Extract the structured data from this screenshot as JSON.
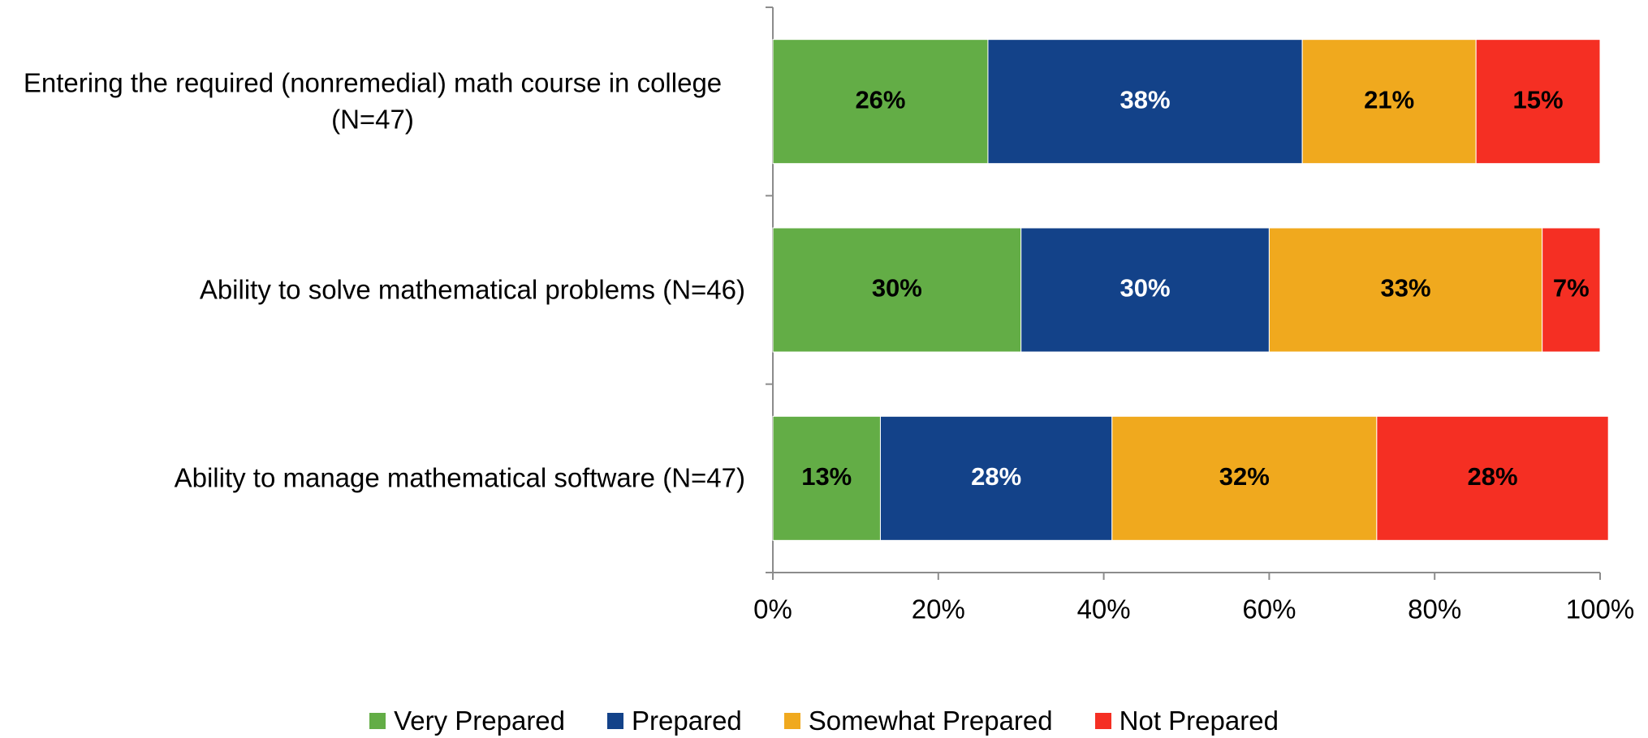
{
  "chart_data": {
    "type": "stacked_barh",
    "categories": [
      "Entering the required (nonremedial) math course in college (N=47)",
      "Ability to solve mathematical problems (N=46)",
      "Ability to manage mathematical software (N=47)"
    ],
    "series": [
      {
        "name": "Very Prepared",
        "color": "#63ad46",
        "label_color": "#000000",
        "values": [
          26,
          30,
          13
        ],
        "value_labels": [
          "26%",
          "30%",
          "13%"
        ]
      },
      {
        "name": "Prepared",
        "color": "#134289",
        "label_color": "#ffffff",
        "values": [
          38,
          30,
          28
        ],
        "value_labels": [
          "38%",
          "30%",
          "28%"
        ]
      },
      {
        "name": "Somewhat Prepared",
        "color": "#f0a91e",
        "label_color": "#000000",
        "values": [
          21,
          33,
          32
        ],
        "value_labels": [
          "21%",
          "33%",
          "32%"
        ]
      },
      {
        "name": "Not Prepared",
        "color": "#f52f23",
        "label_color": "#000000",
        "values": [
          15,
          7,
          28
        ],
        "value_labels": [
          "15%",
          "7%",
          "28%"
        ]
      }
    ],
    "xlim": [
      0,
      100
    ],
    "xticks": [
      {
        "value": 0,
        "label": "0%"
      },
      {
        "value": 20,
        "label": "20%"
      },
      {
        "value": 40,
        "label": "40%"
      },
      {
        "value": 60,
        "label": "60%"
      },
      {
        "value": 80,
        "label": "80%"
      },
      {
        "value": 100,
        "label": "100%"
      }
    ],
    "legend": "bottom"
  }
}
